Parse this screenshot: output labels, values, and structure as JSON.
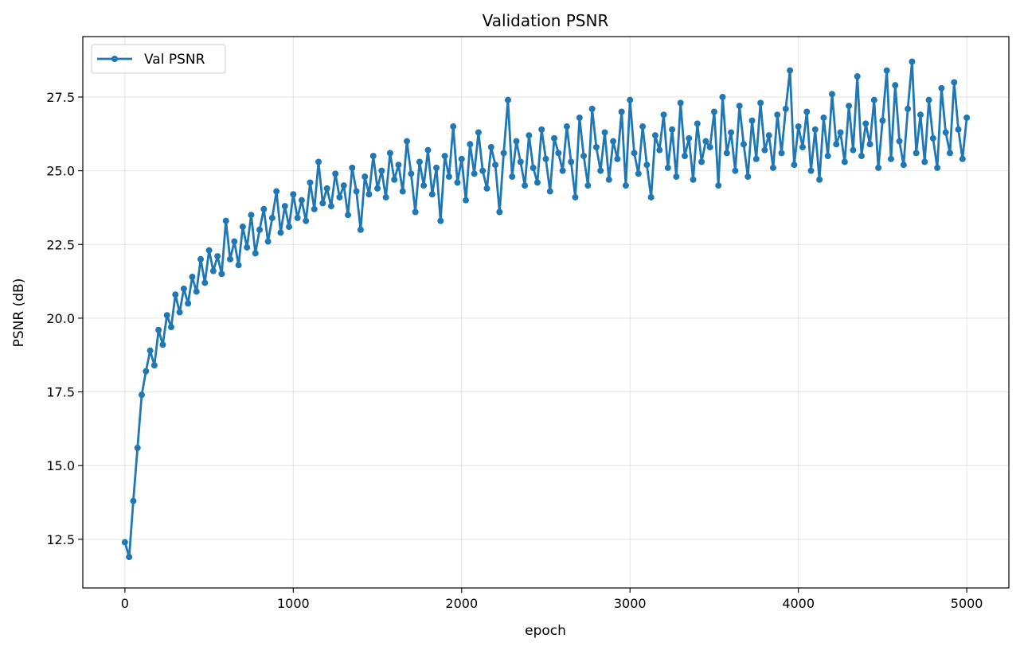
{
  "chart_data": {
    "type": "line",
    "title": "Validation PSNR",
    "xlabel": "epoch",
    "ylabel": "PSNR (dB)",
    "xlim": [
      -250,
      5250
    ],
    "ylim": [
      10.85,
      29.55
    ],
    "xticks": [
      0,
      1000,
      2000,
      3000,
      4000,
      5000
    ],
    "yticks": [
      12.5,
      15.0,
      17.5,
      20.0,
      22.5,
      25.0,
      27.5
    ],
    "xtick_labels": [
      "0",
      "1000",
      "2000",
      "3000",
      "4000",
      "5000"
    ],
    "ytick_labels": [
      "12.5",
      "15.0",
      "17.5",
      "20.0",
      "22.5",
      "25.0",
      "27.5"
    ],
    "grid": true,
    "legend_placement": "top-left",
    "series": [
      {
        "name": "Val PSNR",
        "color": "#1f77b4",
        "marker": "circle",
        "points": [
          [
            0,
            12.4
          ],
          [
            25,
            11.9
          ],
          [
            50,
            13.8
          ],
          [
            75,
            15.6
          ],
          [
            100,
            17.4
          ],
          [
            125,
            18.2
          ],
          [
            150,
            18.9
          ],
          [
            175,
            18.4
          ],
          [
            200,
            19.6
          ],
          [
            225,
            19.1
          ],
          [
            250,
            20.1
          ],
          [
            275,
            19.7
          ],
          [
            300,
            20.8
          ],
          [
            325,
            20.2
          ],
          [
            350,
            21.0
          ],
          [
            375,
            20.5
          ],
          [
            400,
            21.4
          ],
          [
            425,
            20.9
          ],
          [
            450,
            22.0
          ],
          [
            475,
            21.2
          ],
          [
            500,
            22.3
          ],
          [
            525,
            21.6
          ],
          [
            550,
            22.1
          ],
          [
            575,
            21.5
          ],
          [
            600,
            23.3
          ],
          [
            625,
            22.0
          ],
          [
            650,
            22.6
          ],
          [
            675,
            21.8
          ],
          [
            700,
            23.1
          ],
          [
            725,
            22.4
          ],
          [
            750,
            23.5
          ],
          [
            775,
            22.2
          ],
          [
            800,
            23.0
          ],
          [
            825,
            23.7
          ],
          [
            850,
            22.6
          ],
          [
            875,
            23.4
          ],
          [
            900,
            24.3
          ],
          [
            925,
            22.9
          ],
          [
            950,
            23.8
          ],
          [
            975,
            23.1
          ],
          [
            1000,
            24.2
          ],
          [
            1025,
            23.4
          ],
          [
            1050,
            24.0
          ],
          [
            1075,
            23.3
          ],
          [
            1100,
            24.6
          ],
          [
            1125,
            23.7
          ],
          [
            1150,
            25.3
          ],
          [
            1175,
            23.9
          ],
          [
            1200,
            24.4
          ],
          [
            1225,
            23.8
          ],
          [
            1250,
            24.9
          ],
          [
            1275,
            24.1
          ],
          [
            1300,
            24.5
          ],
          [
            1325,
            23.5
          ],
          [
            1350,
            25.1
          ],
          [
            1375,
            24.3
          ],
          [
            1400,
            23.0
          ],
          [
            1425,
            24.8
          ],
          [
            1450,
            24.2
          ],
          [
            1475,
            25.5
          ],
          [
            1500,
            24.4
          ],
          [
            1525,
            25.0
          ],
          [
            1550,
            24.1
          ],
          [
            1575,
            25.6
          ],
          [
            1600,
            24.7
          ],
          [
            1625,
            25.2
          ],
          [
            1650,
            24.3
          ],
          [
            1675,
            26.0
          ],
          [
            1700,
            24.9
          ],
          [
            1725,
            23.6
          ],
          [
            1750,
            25.3
          ],
          [
            1775,
            24.5
          ],
          [
            1800,
            25.7
          ],
          [
            1825,
            24.2
          ],
          [
            1850,
            25.1
          ],
          [
            1875,
            23.3
          ],
          [
            1900,
            25.5
          ],
          [
            1925,
            24.8
          ],
          [
            1950,
            26.5
          ],
          [
            1975,
            24.6
          ],
          [
            2000,
            25.4
          ],
          [
            2025,
            24.0
          ],
          [
            2050,
            25.9
          ],
          [
            2075,
            24.9
          ],
          [
            2100,
            26.3
          ],
          [
            2125,
            25.0
          ],
          [
            2150,
            24.4
          ],
          [
            2175,
            25.8
          ],
          [
            2200,
            25.2
          ],
          [
            2225,
            23.6
          ],
          [
            2250,
            25.6
          ],
          [
            2275,
            27.4
          ],
          [
            2300,
            24.8
          ],
          [
            2325,
            26.0
          ],
          [
            2350,
            25.3
          ],
          [
            2375,
            24.5
          ],
          [
            2400,
            26.2
          ],
          [
            2425,
            25.1
          ],
          [
            2450,
            24.6
          ],
          [
            2475,
            26.4
          ],
          [
            2500,
            25.4
          ],
          [
            2525,
            24.3
          ],
          [
            2550,
            26.1
          ],
          [
            2575,
            25.6
          ],
          [
            2600,
            25.0
          ],
          [
            2625,
            26.5
          ],
          [
            2650,
            25.3
          ],
          [
            2675,
            24.1
          ],
          [
            2700,
            26.8
          ],
          [
            2725,
            25.5
          ],
          [
            2750,
            24.5
          ],
          [
            2775,
            27.1
          ],
          [
            2800,
            25.8
          ],
          [
            2825,
            25.0
          ],
          [
            2850,
            26.3
          ],
          [
            2875,
            24.7
          ],
          [
            2900,
            26.0
          ],
          [
            2925,
            25.4
          ],
          [
            2950,
            27.0
          ],
          [
            2975,
            24.5
          ],
          [
            3000,
            27.4
          ],
          [
            3025,
            25.6
          ],
          [
            3050,
            24.9
          ],
          [
            3075,
            26.5
          ],
          [
            3100,
            25.2
          ],
          [
            3125,
            24.1
          ],
          [
            3150,
            26.2
          ],
          [
            3175,
            25.7
          ],
          [
            3200,
            26.9
          ],
          [
            3225,
            25.1
          ],
          [
            3250,
            26.4
          ],
          [
            3275,
            24.8
          ],
          [
            3300,
            27.3
          ],
          [
            3325,
            25.5
          ],
          [
            3350,
            26.1
          ],
          [
            3375,
            24.7
          ],
          [
            3400,
            26.6
          ],
          [
            3425,
            25.3
          ],
          [
            3450,
            26.0
          ],
          [
            3475,
            25.8
          ],
          [
            3500,
            27.0
          ],
          [
            3525,
            24.5
          ],
          [
            3550,
            27.5
          ],
          [
            3575,
            25.6
          ],
          [
            3600,
            26.3
          ],
          [
            3625,
            25.0
          ],
          [
            3650,
            27.2
          ],
          [
            3675,
            25.9
          ],
          [
            3700,
            24.8
          ],
          [
            3725,
            26.7
          ],
          [
            3750,
            25.4
          ],
          [
            3775,
            27.3
          ],
          [
            3800,
            25.7
          ],
          [
            3825,
            26.2
          ],
          [
            3850,
            25.1
          ],
          [
            3875,
            26.9
          ],
          [
            3900,
            25.6
          ],
          [
            3925,
            27.1
          ],
          [
            3950,
            28.4
          ],
          [
            3975,
            25.2
          ],
          [
            4000,
            26.5
          ],
          [
            4025,
            25.8
          ],
          [
            4050,
            27.0
          ],
          [
            4075,
            25.0
          ],
          [
            4100,
            26.4
          ],
          [
            4125,
            24.7
          ],
          [
            4150,
            26.8
          ],
          [
            4175,
            25.5
          ],
          [
            4200,
            27.6
          ],
          [
            4225,
            25.9
          ],
          [
            4250,
            26.3
          ],
          [
            4275,
            25.3
          ],
          [
            4300,
            27.2
          ],
          [
            4325,
            25.7
          ],
          [
            4350,
            28.2
          ],
          [
            4375,
            25.5
          ],
          [
            4400,
            26.6
          ],
          [
            4425,
            25.9
          ],
          [
            4450,
            27.4
          ],
          [
            4475,
            25.1
          ],
          [
            4500,
            26.7
          ],
          [
            4525,
            28.4
          ],
          [
            4550,
            25.4
          ],
          [
            4575,
            27.9
          ],
          [
            4600,
            26.0
          ],
          [
            4625,
            25.2
          ],
          [
            4650,
            27.1
          ],
          [
            4675,
            28.7
          ],
          [
            4700,
            25.6
          ],
          [
            4725,
            26.9
          ],
          [
            4750,
            25.3
          ],
          [
            4775,
            27.4
          ],
          [
            4800,
            26.1
          ],
          [
            4825,
            25.1
          ],
          [
            4850,
            27.8
          ],
          [
            4875,
            26.3
          ],
          [
            4900,
            25.6
          ],
          [
            4925,
            28.0
          ],
          [
            4950,
            26.4
          ],
          [
            4975,
            25.4
          ],
          [
            5000,
            26.8
          ]
        ]
      }
    ]
  }
}
